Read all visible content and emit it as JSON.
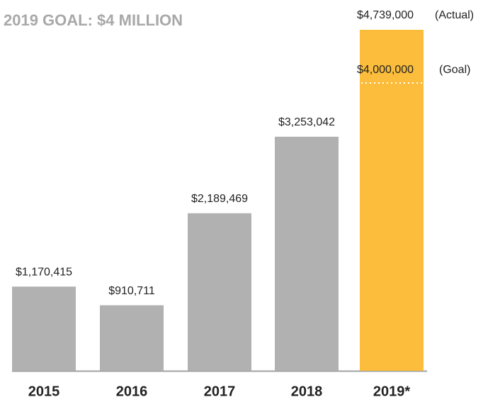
{
  "chart_data": {
    "type": "bar",
    "title": "2019 GOAL: $4 MILLION",
    "categories": [
      "2015",
      "2016",
      "2017",
      "2018",
      "2019*"
    ],
    "values": [
      1170415,
      910711,
      2189469,
      3253042,
      4739000
    ],
    "value_labels": [
      "$1,170,415",
      "$910,711",
      "$2,189,469",
      "$3,253,042",
      "$4,739,000"
    ],
    "colors": [
      "#b1b1b1",
      "#b1b1b1",
      "#b1b1b1",
      "#b1b1b1",
      "#fbbd3b"
    ],
    "annotations": [
      "(Actual)"
    ],
    "goal": {
      "value": 4000000,
      "label": "$4,000,000",
      "annotation": "(Goal)"
    },
    "ylim": [
      0,
      4739000
    ]
  }
}
